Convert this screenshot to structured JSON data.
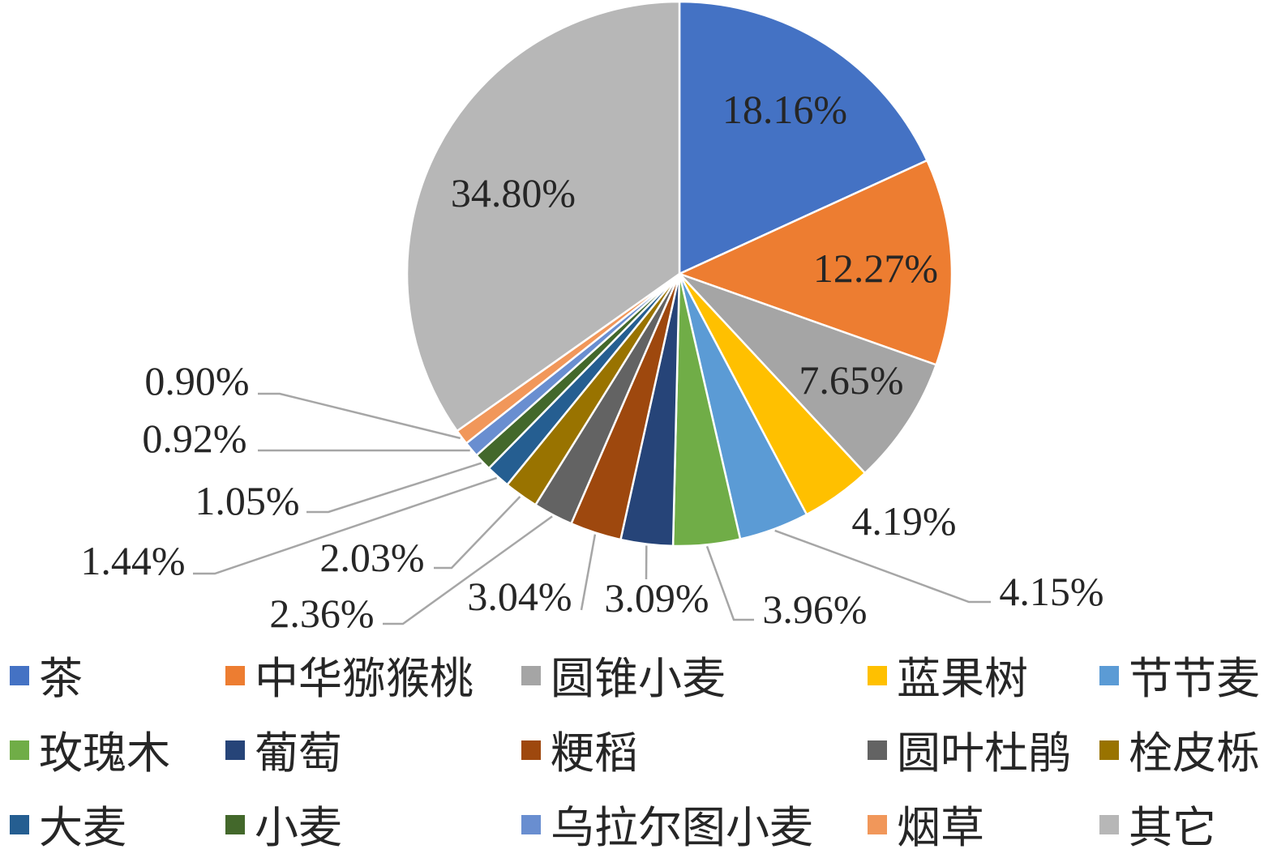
{
  "chart_data": {
    "type": "pie",
    "title": "",
    "legend_position": "bottom",
    "slices": [
      {
        "name": "茶",
        "value": 18.16,
        "label": "18.16%",
        "color": "#4472C4"
      },
      {
        "name": "中华猕猴桃",
        "value": 12.27,
        "label": "12.27%",
        "color": "#ED7D31"
      },
      {
        "name": "圆锥小麦",
        "value": 7.65,
        "label": "7.65%",
        "color": "#A5A5A5"
      },
      {
        "name": "蓝果树",
        "value": 4.19,
        "label": "4.19%",
        "color": "#FFC000"
      },
      {
        "name": "节节麦",
        "value": 4.15,
        "label": "4.15%",
        "color": "#5B9BD5"
      },
      {
        "name": "玫瑰木",
        "value": 3.96,
        "label": "3.96%",
        "color": "#70AD47"
      },
      {
        "name": "葡萄",
        "value": 3.09,
        "label": "3.09%",
        "color": "#264478"
      },
      {
        "name": "粳稻",
        "value": 3.04,
        "label": "3.04%",
        "color": "#9E480E"
      },
      {
        "name": "圆叶杜鹃",
        "value": 2.36,
        "label": "2.36%",
        "color": "#636363"
      },
      {
        "name": "栓皮栎",
        "value": 2.03,
        "label": "2.03%",
        "color": "#997300"
      },
      {
        "name": "大麦",
        "value": 1.44,
        "label": "1.44%",
        "color": "#255E91"
      },
      {
        "name": "小麦",
        "value": 1.05,
        "label": "1.05%",
        "color": "#43682B"
      },
      {
        "name": "乌拉尔图小麦",
        "value": 0.92,
        "label": "0.92%",
        "color": "#698ED0"
      },
      {
        "name": "烟草",
        "value": 0.9,
        "label": "0.90%",
        "color": "#F1975A"
      },
      {
        "name": "其它",
        "value": 34.8,
        "label": "34.80%",
        "color": "#B7B7B7"
      }
    ]
  }
}
